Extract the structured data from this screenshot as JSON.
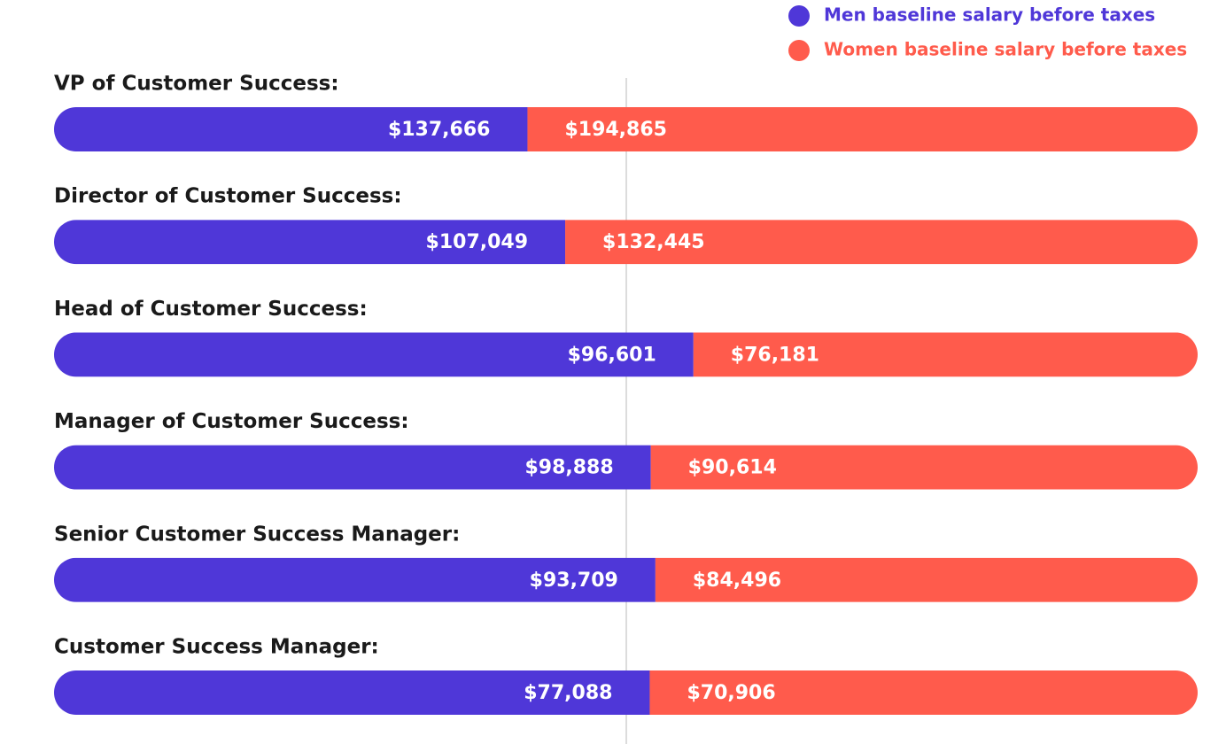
{
  "chart_data": {
    "type": "bar",
    "orientation": "horizontal",
    "stack": "percent",
    "categories": [
      "VP of Customer Success:",
      "Director of Customer Success:",
      "Head of Customer Success:",
      "Manager of Customer Success:",
      "Senior Customer Success Manager:",
      "Customer Success Manager:"
    ],
    "series": [
      {
        "name": "Men baseline salary before taxes",
        "color": "#4f37d8",
        "values": [
          137666,
          107049,
          96601,
          98888,
          93709,
          77088
        ],
        "value_labels": [
          "$137,666",
          "$107,049",
          "$96,601",
          "$98,888",
          "$93,709",
          "$77,088"
        ]
      },
      {
        "name": "Women baseline salary before taxes",
        "color": "#ff5b4c",
        "values": [
          194865,
          132445,
          76181,
          90614,
          84496,
          70906
        ],
        "value_labels": [
          "$194,865",
          "$132,445",
          "$76,181",
          "$90,614",
          "$84,496",
          "$70,906"
        ]
      }
    ],
    "legend": "top-right"
  }
}
